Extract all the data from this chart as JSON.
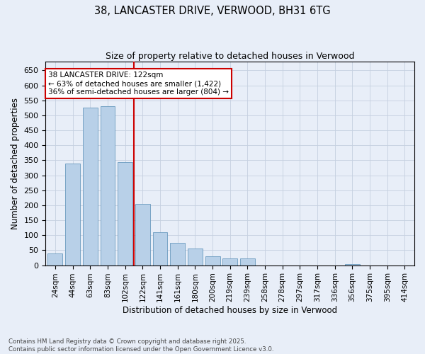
{
  "title": "38, LANCASTER DRIVE, VERWOOD, BH31 6TG",
  "subtitle": "Size of property relative to detached houses in Verwood",
  "xlabel": "Distribution of detached houses by size in Verwood",
  "ylabel": "Number of detached properties",
  "categories": [
    "24sqm",
    "44sqm",
    "63sqm",
    "83sqm",
    "102sqm",
    "122sqm",
    "141sqm",
    "161sqm",
    "180sqm",
    "200sqm",
    "219sqm",
    "239sqm",
    "258sqm",
    "278sqm",
    "297sqm",
    "317sqm",
    "336sqm",
    "356sqm",
    "375sqm",
    "395sqm",
    "414sqm"
  ],
  "values": [
    40,
    340,
    525,
    530,
    345,
    205,
    110,
    75,
    55,
    30,
    22,
    22,
    0,
    0,
    0,
    0,
    0,
    4,
    0,
    0,
    0
  ],
  "bar_color": "#b8d0e8",
  "bar_edge_color": "#6a9abf",
  "highlight_index": 5,
  "highlight_line_color": "#cc0000",
  "ylim_max": 680,
  "ytick_step": 50,
  "annotation_text": "38 LANCASTER DRIVE: 122sqm\n← 63% of detached houses are smaller (1,422)\n36% of semi-detached houses are larger (804) →",
  "annotation_box_facecolor": "#ffffff",
  "annotation_box_edgecolor": "#cc0000",
  "footer_text": "Contains HM Land Registry data © Crown copyright and database right 2025.\nContains public sector information licensed under the Open Government Licence v3.0.",
  "bg_color": "#e8eef8",
  "grid_color": "#c5d0e0"
}
